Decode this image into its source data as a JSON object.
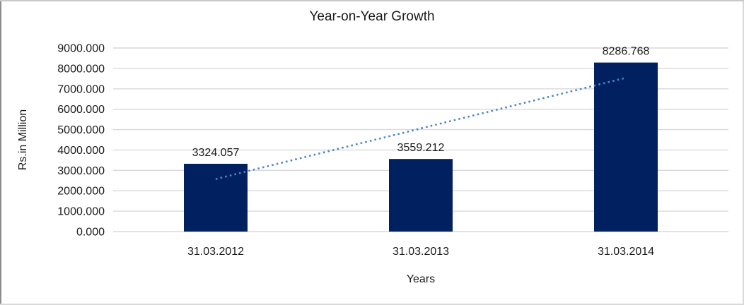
{
  "chart_data": {
    "type": "bar",
    "title": "Year-on-Year Growth",
    "xlabel": "Years",
    "ylabel": "Rs.in Million",
    "categories": [
      "31.03.2012",
      "31.03.2013",
      "31.03.2014"
    ],
    "values": [
      3324.057,
      3559.212,
      8286.768
    ],
    "data_labels": [
      "3324.057",
      "3559.212",
      "8286.768"
    ],
    "ylim": [
      0,
      9000
    ],
    "ytick_step": 1000,
    "ytick_labels": [
      "0.000",
      "1000.000",
      "2000.000",
      "3000.000",
      "4000.000",
      "5000.000",
      "6000.000",
      "7000.000",
      "8000.000",
      "9000.000"
    ],
    "grid": true,
    "legend": "none",
    "trendline": {
      "type": "linear",
      "style": "dotted"
    },
    "colors": {
      "bar": "#002060",
      "trendline": "#4d86c8",
      "gridline": "#d9d9d9",
      "text": "#1a1a1a",
      "background": "#ffffff",
      "frame_light": "#d9d9d9",
      "frame_dark": "#8c8c8c"
    }
  }
}
